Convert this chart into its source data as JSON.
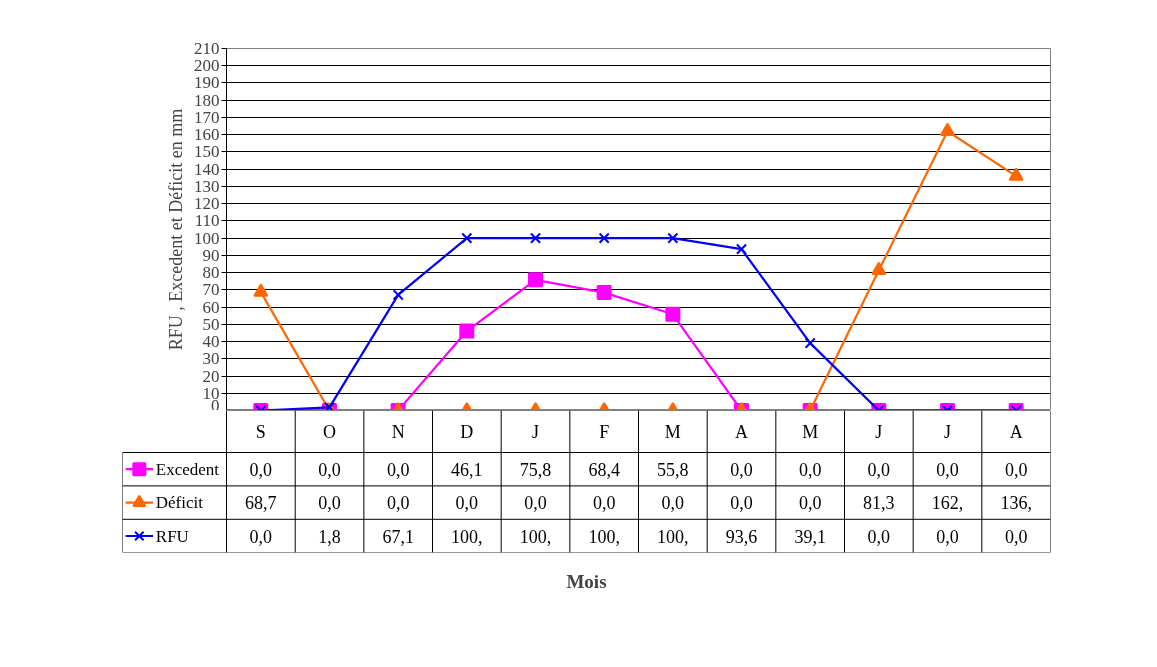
{
  "chart_data": {
    "type": "line",
    "annotations": [
      "Mois"
    ],
    "ylabel": "RFU , Excedent et Déficit en mm",
    "categories": [
      "S",
      "O",
      "N",
      "D",
      "J",
      "F",
      "M",
      "A",
      "M",
      "J",
      "J",
      "A"
    ],
    "ylim": [
      0,
      210
    ],
    "yticks": [
      0,
      10,
      20,
      30,
      40,
      50,
      60,
      70,
      80,
      90,
      100,
      110,
      120,
      130,
      140,
      150,
      160,
      170,
      180,
      190,
      200,
      210
    ],
    "grid": "y",
    "legend": "bottom left",
    "tick_labels": "y",
    "series": [
      {
        "name": "Excedent",
        "color": "#ff00ff",
        "marker": "square",
        "values": [
          0,
          0,
          0,
          46.1,
          75.8,
          68.4,
          55.8,
          0,
          0,
          0,
          0,
          0
        ],
        "value_labels": [
          "0,0",
          "0,0",
          "0,0",
          "46,1",
          "75,8",
          "68,4",
          "55,8",
          "0,0",
          "0,0",
          "0,0",
          "0,0",
          "0,0"
        ]
      },
      {
        "name": "Déficit",
        "color": "#ff6600",
        "marker": "triangle",
        "values": [
          68.7,
          0,
          0,
          0,
          0,
          0,
          0,
          0,
          0,
          81.3,
          162,
          136
        ],
        "value_labels": [
          "68,7",
          "0,0",
          "0,0",
          "0,0",
          "0,0",
          "0,0",
          "0,0",
          "0,0",
          "0,0",
          "81,3",
          "162,",
          "136,"
        ]
      },
      {
        "name": "RFU",
        "color": "#0000ff",
        "marker": "cross",
        "values": [
          0,
          1.8,
          67.1,
          100,
          100,
          100,
          100,
          93.6,
          39.1,
          0,
          0,
          0
        ],
        "value_labels": [
          "0,0",
          "1,8",
          "67,1",
          "100,",
          "100,",
          "100,",
          "100,",
          "93,6",
          "39,1",
          "0,0",
          "0,0",
          "0,0"
        ]
      }
    ]
  }
}
